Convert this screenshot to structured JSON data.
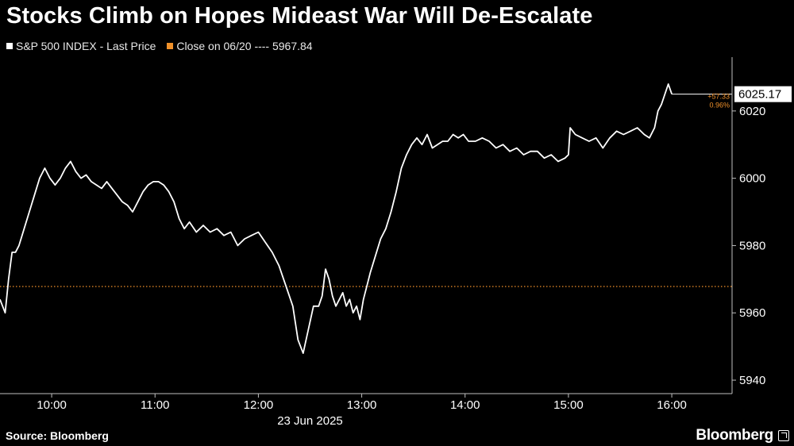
{
  "title": "Stocks Climb on Hopes Mideast War Will De-Escalate",
  "legend": {
    "series_label": "S&P 500 INDEX - Last Price",
    "close_label": "Close on 06/20 ---- 5967.84"
  },
  "colors": {
    "price": "#ffffff",
    "close": "#f0912a",
    "axis": "#bfbfbf",
    "background": "#000000"
  },
  "source": "Source: Bloomberg",
  "brand": "Bloomberg",
  "chart_data": {
    "type": "line",
    "date_label": "23 Jun 2025",
    "x_ticks": [
      "10:00",
      "11:00",
      "12:00",
      "13:00",
      "14:00",
      "15:00",
      "16:00"
    ],
    "y_ticks": [
      "5940",
      "5960",
      "5980",
      "6000",
      "6020"
    ],
    "ylim": [
      5936,
      6036
    ],
    "xlim": [
      "09:30",
      "16:35"
    ],
    "reference": {
      "label": "Close on 06/20",
      "value": 5967.84
    },
    "last": {
      "value_label": "6025.17",
      "change_label": "+57.33",
      "pct_label": "0.96%"
    },
    "series": [
      {
        "name": "S&P 500 INDEX - Last Price",
        "x": [
          "09:30",
          "09:33",
          "09:35",
          "09:37",
          "09:39",
          "09:41",
          "09:44",
          "09:47",
          "09:50",
          "09:53",
          "09:56",
          "09:59",
          "10:02",
          "10:05",
          "10:08",
          "10:11",
          "10:14",
          "10:17",
          "10:20",
          "10:23",
          "10:26",
          "10:29",
          "10:32",
          "10:35",
          "10:38",
          "10:41",
          "10:44",
          "10:47",
          "10:50",
          "10:53",
          "10:56",
          "10:59",
          "11:02",
          "11:05",
          "11:08",
          "11:11",
          "11:14",
          "11:17",
          "11:20",
          "11:24",
          "11:28",
          "11:32",
          "11:36",
          "11:40",
          "11:44",
          "11:48",
          "11:52",
          "11:56",
          "12:00",
          "12:04",
          "12:08",
          "12:12",
          "12:16",
          "12:20",
          "12:23",
          "12:26",
          "12:29",
          "12:32",
          "12:35",
          "12:37",
          "12:39",
          "12:41",
          "12:43",
          "12:45",
          "12:47",
          "12:49",
          "12:51",
          "12:53",
          "12:55",
          "12:57",
          "12:59",
          "13:01",
          "13:03",
          "13:05",
          "13:08",
          "13:11",
          "13:14",
          "13:17",
          "13:20",
          "13:23",
          "13:26",
          "13:29",
          "13:32",
          "13:35",
          "13:38",
          "13:41",
          "13:44",
          "13:47",
          "13:50",
          "13:53",
          "13:56",
          "13:59",
          "14:02",
          "14:06",
          "14:10",
          "14:14",
          "14:18",
          "14:22",
          "14:26",
          "14:30",
          "14:34",
          "14:38",
          "14:42",
          "14:46",
          "14:50",
          "14:54",
          "14:58",
          "15:00",
          "15:01",
          "15:04",
          "15:08",
          "15:12",
          "15:16",
          "15:20",
          "15:24",
          "15:28",
          "15:32",
          "15:36",
          "15:40",
          "15:44",
          "15:47",
          "15:50",
          "15:52",
          "15:54",
          "15:56",
          "15:58",
          "16:00"
        ],
        "values": [
          5964,
          5960,
          5970,
          5978,
          5978,
          5980,
          5985,
          5990,
          5995,
          6000,
          6003,
          6000,
          5998,
          6000,
          6003,
          6005,
          6002,
          6000,
          6001,
          5999,
          5998,
          5997,
          5999,
          5997,
          5995,
          5993,
          5992,
          5990,
          5993,
          5996,
          5998,
          5999,
          5999,
          5998,
          5996,
          5993,
          5988,
          5985,
          5987,
          5984,
          5986,
          5984,
          5985,
          5983,
          5984,
          5980,
          5982,
          5983,
          5984,
          5981,
          5978,
          5974,
          5968,
          5962,
          5952,
          5948,
          5955,
          5962,
          5962,
          5965,
          5973,
          5970,
          5965,
          5962,
          5964,
          5966,
          5962,
          5964,
          5960,
          5962,
          5958,
          5964,
          5968,
          5972,
          5977,
          5982,
          5985,
          5990,
          5996,
          6003,
          6007,
          6010,
          6012,
          6010,
          6013,
          6009,
          6010,
          6011,
          6011,
          6013,
          6012,
          6013,
          6011,
          6011,
          6012,
          6011,
          6009,
          6010,
          6008,
          6009,
          6007,
          6008,
          6008,
          6006,
          6007,
          6005,
          6006,
          6007,
          6015,
          6013,
          6012,
          6011,
          6012,
          6009,
          6012,
          6014,
          6013,
          6014,
          6015,
          6013,
          6012,
          6015,
          6020,
          6022,
          6025,
          6028,
          6025
        ]
      }
    ]
  }
}
